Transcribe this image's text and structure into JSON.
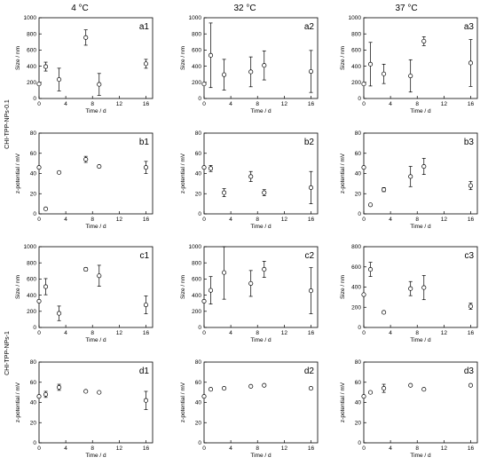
{
  "figure": {
    "column_headers": [
      "4 °C",
      "32 °C",
      "37 °C"
    ],
    "row_group_labels": [
      "CHI-TPP-NPs-0.1",
      "CHI-TPP-NPs-1"
    ]
  },
  "chart_data": [
    {
      "id": "a1",
      "type": "scatter",
      "panel_label": "a1",
      "xlabel": "Time / d",
      "ylabel": "Size / nm",
      "xlim": [
        0,
        17
      ],
      "ylim": [
        0,
        1000
      ],
      "xticks": [
        0,
        4,
        8,
        12,
        16
      ],
      "yticks": [
        0,
        200,
        400,
        600,
        800,
        1000
      ],
      "points": [
        {
          "x": 0,
          "y": 180,
          "err": 0
        },
        {
          "x": 1,
          "y": 395,
          "err": 55
        },
        {
          "x": 3,
          "y": 235,
          "err": 140
        },
        {
          "x": 7,
          "y": 755,
          "err": 95
        },
        {
          "x": 9,
          "y": 175,
          "err": 135
        },
        {
          "x": 16,
          "y": 430,
          "err": 55
        }
      ]
    },
    {
      "id": "a2",
      "type": "scatter",
      "panel_label": "a2",
      "xlabel": "Time / d",
      "ylabel": "Size / nm",
      "xlim": [
        0,
        17
      ],
      "ylim": [
        0,
        1000
      ],
      "xticks": [
        0,
        4,
        8,
        12,
        16
      ],
      "yticks": [
        0,
        200,
        400,
        600,
        800,
        1000
      ],
      "points": [
        {
          "x": 0,
          "y": 180,
          "err": 0
        },
        {
          "x": 1,
          "y": 535,
          "err": 400
        },
        {
          "x": 3,
          "y": 295,
          "err": 190
        },
        {
          "x": 7,
          "y": 330,
          "err": 185
        },
        {
          "x": 9,
          "y": 410,
          "err": 180
        },
        {
          "x": 16,
          "y": 335,
          "err": 260
        }
      ]
    },
    {
      "id": "a3",
      "type": "scatter",
      "panel_label": "a3",
      "xlabel": "Time / d",
      "ylabel": "Size / nm",
      "xlim": [
        0,
        17
      ],
      "ylim": [
        0,
        1000
      ],
      "xticks": [
        0,
        4,
        8,
        12,
        16
      ],
      "yticks": [
        0,
        200,
        400,
        600,
        800,
        1000
      ],
      "points": [
        {
          "x": 0,
          "y": 180,
          "err": 0
        },
        {
          "x": 1,
          "y": 425,
          "err": 270
        },
        {
          "x": 3,
          "y": 305,
          "err": 120
        },
        {
          "x": 7,
          "y": 280,
          "err": 200
        },
        {
          "x": 9,
          "y": 710,
          "err": 55
        },
        {
          "x": 16,
          "y": 440,
          "err": 290
        }
      ]
    },
    {
      "id": "b1",
      "type": "scatter",
      "panel_label": "b1",
      "xlabel": "Time / d",
      "ylabel": "z-potential / mV",
      "xlim": [
        0,
        17
      ],
      "ylim": [
        0,
        80
      ],
      "xticks": [
        0,
        4,
        8,
        12,
        16
      ],
      "yticks": [
        0,
        20,
        40,
        60,
        80
      ],
      "points": [
        {
          "x": 0,
          "y": 46,
          "err": 0
        },
        {
          "x": 1,
          "y": 5,
          "err": 0
        },
        {
          "x": 3,
          "y": 41,
          "err": 0
        },
        {
          "x": 7,
          "y": 54,
          "err": 3
        },
        {
          "x": 9,
          "y": 47,
          "err": 0
        },
        {
          "x": 16,
          "y": 46,
          "err": 6
        }
      ]
    },
    {
      "id": "b2",
      "type": "scatter",
      "panel_label": "b2",
      "xlabel": "Time / d",
      "ylabel": "z-potential / mV",
      "xlim": [
        0,
        17
      ],
      "ylim": [
        0,
        80
      ],
      "xticks": [
        0,
        4,
        8,
        12,
        16
      ],
      "yticks": [
        0,
        20,
        40,
        60,
        80
      ],
      "points": [
        {
          "x": 0,
          "y": 46,
          "err": 0
        },
        {
          "x": 1,
          "y": 45,
          "err": 3
        },
        {
          "x": 3,
          "y": 21,
          "err": 4
        },
        {
          "x": 7,
          "y": 37,
          "err": 5
        },
        {
          "x": 9,
          "y": 21,
          "err": 3
        },
        {
          "x": 16,
          "y": 26,
          "err": 16
        }
      ]
    },
    {
      "id": "b3",
      "type": "scatter",
      "panel_label": "b3",
      "xlabel": "Time / d",
      "ylabel": "z-potential / mV",
      "xlim": [
        0,
        17
      ],
      "ylim": [
        0,
        80
      ],
      "xticks": [
        0,
        4,
        8,
        12,
        16
      ],
      "yticks": [
        0,
        20,
        40,
        60,
        80
      ],
      "points": [
        {
          "x": 0,
          "y": 46,
          "err": 0
        },
        {
          "x": 1,
          "y": 9,
          "err": 0
        },
        {
          "x": 3,
          "y": 24,
          "err": 2
        },
        {
          "x": 7,
          "y": 37,
          "err": 10
        },
        {
          "x": 9,
          "y": 47,
          "err": 8
        },
        {
          "x": 16,
          "y": 28,
          "err": 4
        }
      ]
    },
    {
      "id": "c1",
      "type": "scatter",
      "panel_label": "c1",
      "xlabel": "Time / d",
      "ylabel": "Size / nm",
      "xlim": [
        0,
        17
      ],
      "ylim": [
        0,
        1000
      ],
      "xticks": [
        0,
        4,
        8,
        12,
        16
      ],
      "yticks": [
        0,
        200,
        400,
        600,
        800,
        1000
      ],
      "points": [
        {
          "x": 0,
          "y": 325,
          "err": 0
        },
        {
          "x": 1,
          "y": 505,
          "err": 100
        },
        {
          "x": 3,
          "y": 175,
          "err": 90
        },
        {
          "x": 7,
          "y": 720,
          "err": 20
        },
        {
          "x": 9,
          "y": 640,
          "err": 130
        },
        {
          "x": 16,
          "y": 280,
          "err": 110
        }
      ]
    },
    {
      "id": "c2",
      "type": "scatter",
      "panel_label": "c2",
      "xlabel": "Time / d",
      "ylabel": "Size / nm",
      "xlim": [
        0,
        17
      ],
      "ylim": [
        0,
        1000
      ],
      "xticks": [
        0,
        4,
        8,
        12,
        16
      ],
      "yticks": [
        0,
        200,
        400,
        600,
        800,
        1000
      ],
      "points": [
        {
          "x": 0,
          "y": 325,
          "err": 0
        },
        {
          "x": 1,
          "y": 460,
          "err": 170
        },
        {
          "x": 3,
          "y": 680,
          "err": 330
        },
        {
          "x": 7,
          "y": 545,
          "err": 160
        },
        {
          "x": 9,
          "y": 720,
          "err": 100
        },
        {
          "x": 16,
          "y": 455,
          "err": 285
        }
      ]
    },
    {
      "id": "c3",
      "type": "scatter",
      "panel_label": "c3",
      "xlabel": "Time / d",
      "ylabel": "Size / nm",
      "xlim": [
        0,
        17
      ],
      "ylim": [
        0,
        800
      ],
      "xticks": [
        0,
        4,
        8,
        12,
        16
      ],
      "yticks": [
        0,
        200,
        400,
        600,
        800
      ],
      "points": [
        {
          "x": 0,
          "y": 325,
          "err": 0
        },
        {
          "x": 1,
          "y": 575,
          "err": 70
        },
        {
          "x": 3,
          "y": 150,
          "err": 0
        },
        {
          "x": 7,
          "y": 385,
          "err": 70
        },
        {
          "x": 9,
          "y": 395,
          "err": 120
        },
        {
          "x": 16,
          "y": 210,
          "err": 30
        }
      ]
    },
    {
      "id": "d1",
      "type": "scatter",
      "panel_label": "d1",
      "xlabel": "Time / d",
      "ylabel": "z-potential / mV",
      "xlim": [
        0,
        17
      ],
      "ylim": [
        0,
        80
      ],
      "xticks": [
        0,
        4,
        8,
        12,
        16
      ],
      "yticks": [
        0,
        20,
        40,
        60,
        80
      ],
      "points": [
        {
          "x": 0,
          "y": 46,
          "err": 0
        },
        {
          "x": 1,
          "y": 48,
          "err": 3
        },
        {
          "x": 3,
          "y": 55,
          "err": 3
        },
        {
          "x": 7,
          "y": 51,
          "err": 0
        },
        {
          "x": 9,
          "y": 50,
          "err": 0
        },
        {
          "x": 16,
          "y": 42,
          "err": 9
        }
      ]
    },
    {
      "id": "d2",
      "type": "scatter",
      "panel_label": "d2",
      "xlabel": "Time / d",
      "ylabel": "z-potential / mV",
      "xlim": [
        0,
        17
      ],
      "ylim": [
        0,
        80
      ],
      "xticks": [
        0,
        4,
        8,
        12,
        16
      ],
      "yticks": [
        0,
        20,
        40,
        60,
        80
      ],
      "points": [
        {
          "x": 0,
          "y": 46,
          "err": 0
        },
        {
          "x": 1,
          "y": 53,
          "err": 0
        },
        {
          "x": 3,
          "y": 54,
          "err": 0
        },
        {
          "x": 7,
          "y": 56,
          "err": 0
        },
        {
          "x": 9,
          "y": 57,
          "err": 0
        },
        {
          "x": 16,
          "y": 54,
          "err": 0
        }
      ]
    },
    {
      "id": "d3",
      "type": "scatter",
      "panel_label": "d3",
      "xlabel": "Time / d",
      "ylabel": "z-potential / mV",
      "xlim": [
        0,
        17
      ],
      "ylim": [
        0,
        80
      ],
      "xticks": [
        0,
        4,
        8,
        12,
        16
      ],
      "yticks": [
        0,
        20,
        40,
        60,
        80
      ],
      "points": [
        {
          "x": 0,
          "y": 46,
          "err": 0
        },
        {
          "x": 1,
          "y": 50,
          "err": 0
        },
        {
          "x": 3,
          "y": 54,
          "err": 4
        },
        {
          "x": 7,
          "y": 57,
          "err": 0
        },
        {
          "x": 9,
          "y": 53,
          "err": 0
        },
        {
          "x": 16,
          "y": 57,
          "err": 0
        }
      ]
    }
  ]
}
